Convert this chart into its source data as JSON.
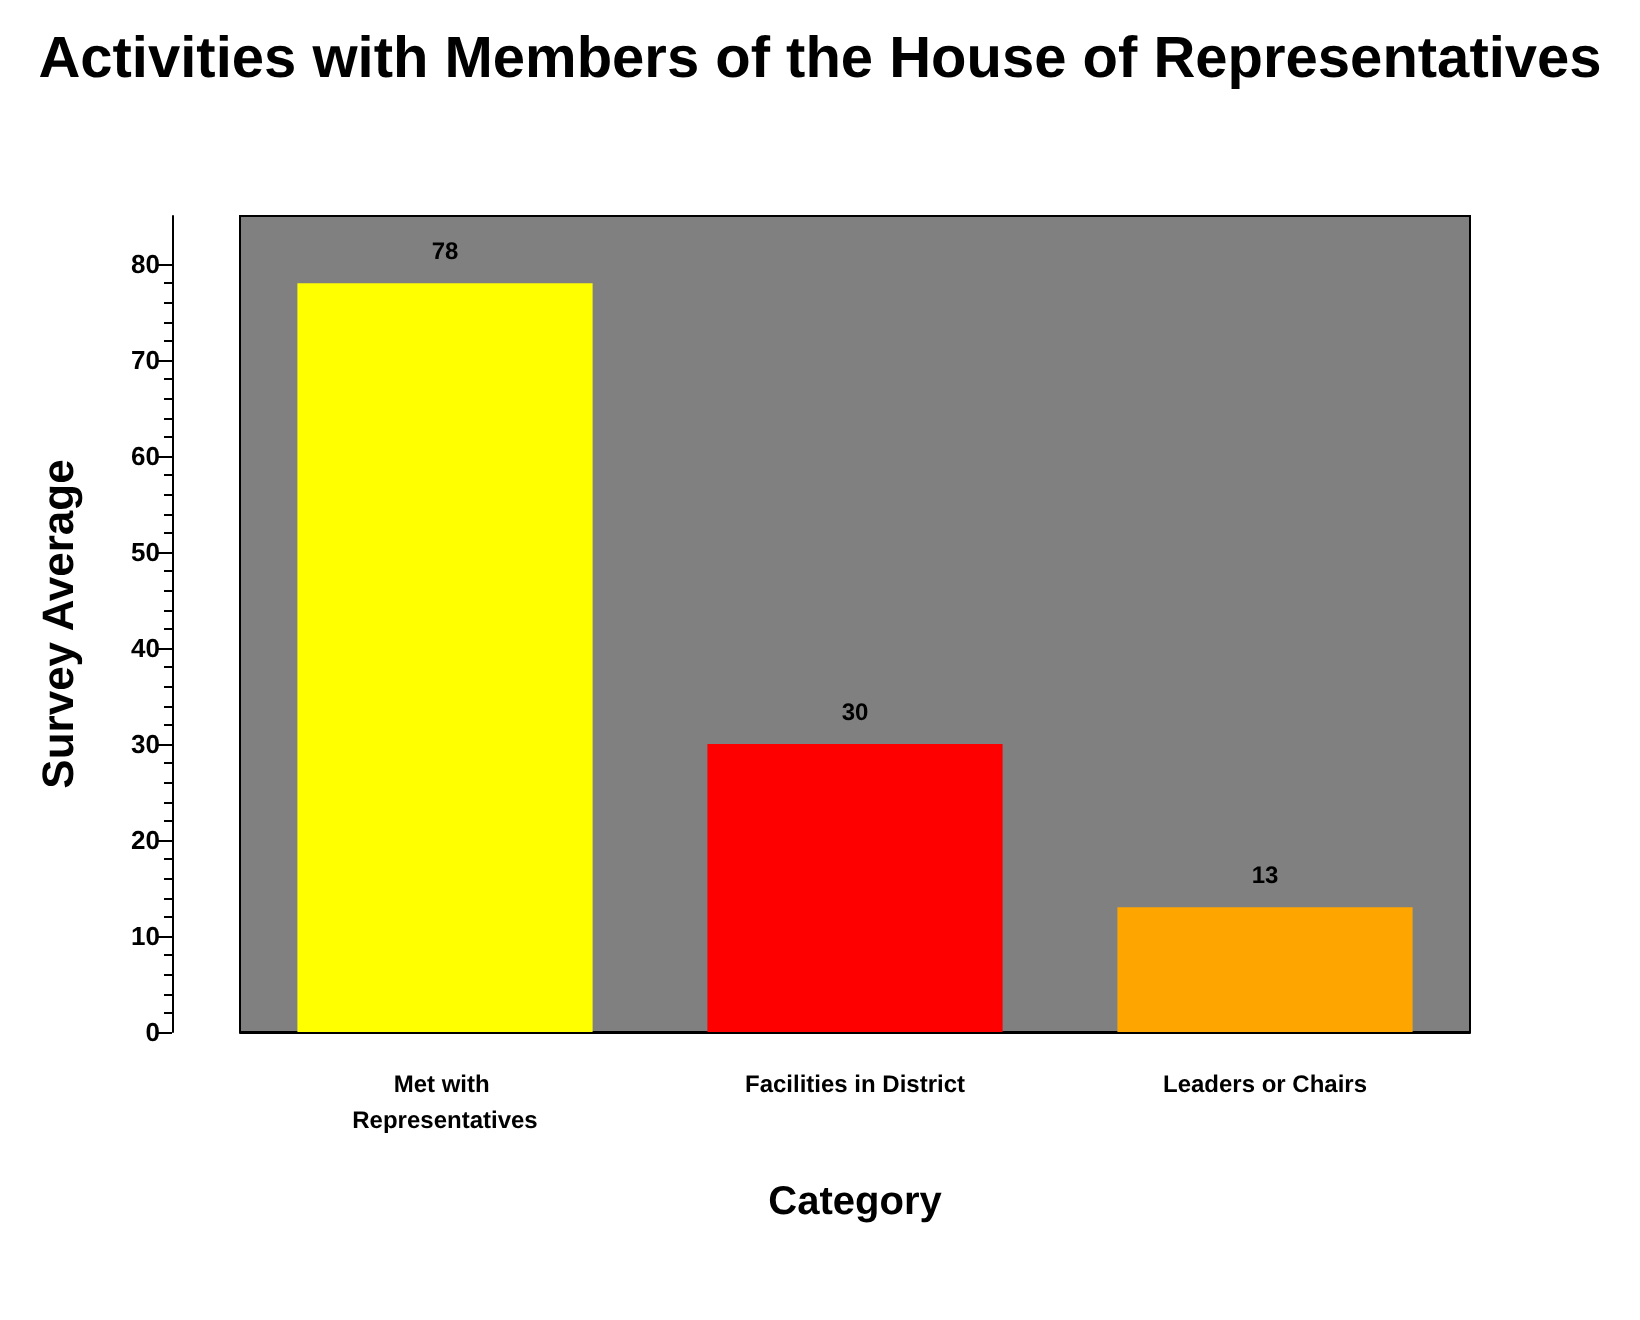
{
  "chart_data": {
    "type": "bar",
    "title": "Activities with Members of the House of Representatives",
    "xlabel": "Category",
    "ylabel": "Survey Average",
    "categories": [
      "Met with Representatives",
      "Facilities in District",
      "Leaders or Chairs"
    ],
    "values": [
      78,
      30,
      13
    ],
    "colors": [
      "#ffff00",
      "#ff0000",
      "#ffa500"
    ],
    "ylim": [
      0,
      85
    ],
    "yticks": [
      0,
      10,
      20,
      30,
      40,
      50,
      60,
      70,
      80
    ],
    "data_labels": true
  }
}
